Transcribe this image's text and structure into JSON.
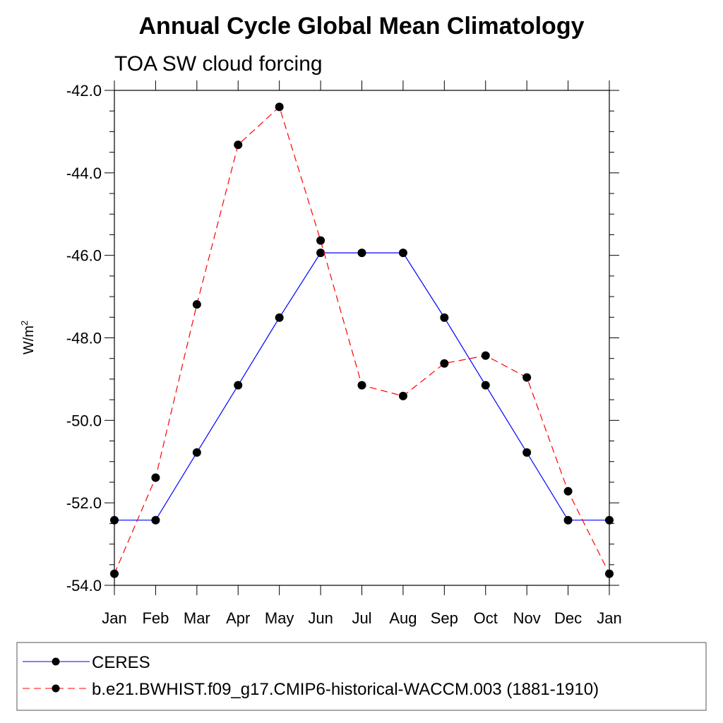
{
  "chart_data": {
    "type": "line",
    "title": "Annual Cycle Global Mean Climatology",
    "subtitle": "TOA SW cloud forcing",
    "xlabel": "",
    "ylabel": "W/m",
    "ylabel_sup": "2",
    "categories": [
      "Jan",
      "Feb",
      "Mar",
      "Apr",
      "May",
      "Jun",
      "Jul",
      "Aug",
      "Sep",
      "Oct",
      "Nov",
      "Dec",
      "Jan"
    ],
    "ylim": [
      -54.0,
      -42.0
    ],
    "yticks": [
      -42.0,
      -44.0,
      -46.0,
      -48.0,
      -50.0,
      -52.0,
      -54.0
    ],
    "ytick_labels": [
      "-42.0",
      "-44.0",
      "-46.0",
      "-48.0",
      "-50.0",
      "-52.0",
      "-54.0"
    ],
    "legend_position": "bottom",
    "series": [
      {
        "name": "CERES",
        "color": "#0000ff",
        "dash": "solid",
        "values": [
          -52.42,
          -52.42,
          -50.78,
          -49.15,
          -47.51,
          -45.94,
          -45.94,
          -45.94,
          -47.51,
          -49.15,
          -50.78,
          -52.42,
          -52.42
        ]
      },
      {
        "name": "b.e21.BWHIST.f09_g17.CMIP6-historical-WACCM.003 (1881-1910)",
        "color": "#ff0000",
        "dash": "dashed",
        "values": [
          -53.72,
          -51.39,
          -47.19,
          -43.32,
          -42.4,
          -45.64,
          -49.15,
          -49.41,
          -48.62,
          -48.43,
          -48.96,
          -51.72,
          -53.72
        ]
      }
    ]
  }
}
